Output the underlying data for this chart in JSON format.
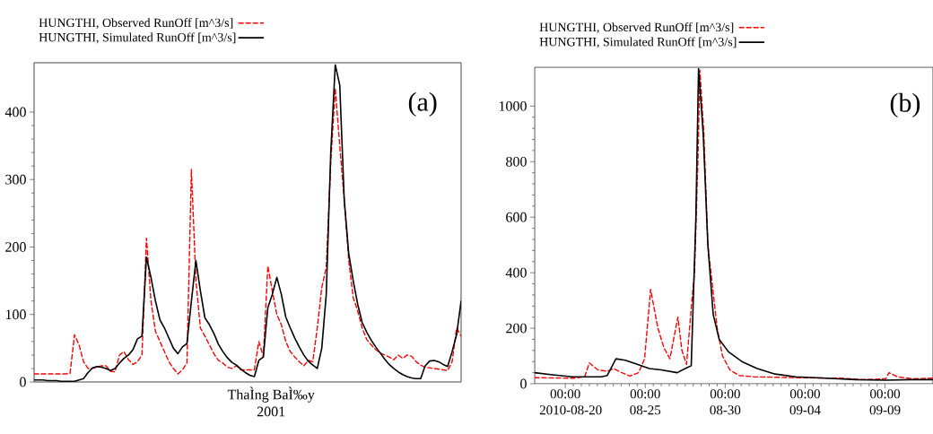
{
  "chart_data": [
    {
      "type": "line",
      "title": "(a)",
      "xlabel": "ThaÌng BaÌ‰y",
      "annotations": [
        "2001"
      ],
      "legend": "top left",
      "categories": [
        null,
        null,
        null,
        null,
        null,
        null,
        null,
        null,
        null,
        null,
        null,
        null,
        null,
        null,
        null,
        null,
        null,
        null,
        null,
        null,
        null,
        null,
        null,
        null,
        null,
        null,
        null,
        null,
        null,
        null,
        null,
        null,
        null,
        null,
        null,
        null,
        null,
        null,
        null,
        null,
        null,
        null,
        null,
        null,
        null,
        null,
        null,
        null,
        null,
        null,
        null,
        null,
        null,
        null,
        null,
        null,
        null,
        null,
        null,
        null,
        null,
        null,
        null,
        null,
        null,
        null,
        null,
        null,
        null,
        null,
        null,
        null,
        null,
        null,
        null,
        null,
        null,
        null,
        null,
        null,
        null,
        null,
        null,
        null,
        null,
        null,
        null,
        null,
        null,
        null,
        null,
        null,
        null,
        null,
        null,
        null
      ],
      "ylim": [
        0,
        473
      ],
      "yticks": [
        0,
        100,
        200,
        300,
        400
      ],
      "series": [
        {
          "name": "HUNGTHI, Observed RunOff [m^3/s]",
          "color": "#ff0000",
          "line_style": "dashed",
          "values": [
            12,
            12,
            12,
            12,
            12,
            12,
            12,
            12,
            13,
            70,
            55,
            30,
            20,
            20,
            22,
            24,
            24,
            16,
            15,
            40,
            45,
            33,
            26,
            30,
            40,
            213,
            120,
            75,
            60,
            45,
            30,
            20,
            12,
            18,
            28,
            315,
            150,
            80,
            68,
            55,
            42,
            32,
            28,
            22,
            20,
            24,
            18,
            18,
            18,
            18,
            60,
            38,
            172,
            135,
            100,
            85,
            60,
            45,
            37,
            30,
            24,
            32,
            30,
            80,
            140,
            170,
            325,
            435,
            350,
            270,
            180,
            125,
            105,
            80,
            63,
            55,
            48,
            43,
            40,
            37,
            33,
            40,
            35,
            40,
            38,
            30,
            25,
            22,
            21,
            20,
            19,
            18,
            17,
            30,
            80,
            68
          ]
        },
        {
          "name": "HUNGTHI, Simulated RunOff [m^3/s]",
          "color": "#000000",
          "line_style": "solid",
          "values": [
            3,
            3,
            3,
            2,
            2,
            2,
            1,
            1,
            1,
            1,
            3,
            5,
            14,
            21,
            23,
            22,
            20,
            17,
            20,
            28,
            35,
            40,
            48,
            64,
            68,
            185,
            155,
            120,
            92,
            80,
            65,
            50,
            42,
            52,
            57,
            120,
            180,
            135,
            95,
            85,
            72,
            56,
            45,
            36,
            29,
            25,
            19,
            14,
            10,
            8,
            32,
            37,
            110,
            130,
            155,
            130,
            96,
            80,
            65,
            52,
            40,
            31,
            25,
            20,
            50,
            130,
            340,
            470,
            440,
            270,
            190,
            150,
            115,
            88,
            74,
            62,
            52,
            43,
            34,
            26,
            20,
            15,
            11,
            8,
            6,
            5,
            5,
            24,
            31,
            32,
            30,
            26,
            23,
            45,
            70,
            120
          ]
        }
      ]
    },
    {
      "type": "line",
      "title": "(b)",
      "legend": "top left",
      "xlim": [
        "2010-08-18T02:00",
        "2010-09-12T00:00"
      ],
      "xticks": [
        {
          "value": "2010-08-20T00:00",
          "label": "00:00\n2010-08-20"
        },
        {
          "value": "2010-08-25T00:00",
          "label": "00:00\n08-25"
        },
        {
          "value": "2010-08-30T00:00",
          "label": "00:00\n08-30"
        },
        {
          "value": "2010-09-04T00:00",
          "label": "00:00\n09-04"
        },
        {
          "value": "2010-09-09T00:00",
          "label": "00:00\n09-09"
        }
      ],
      "ylim": [
        0,
        1140
      ],
      "yticks": [
        0,
        200,
        400,
        600,
        800,
        1000
      ],
      "series": [
        {
          "name": "HUNGTHI, Observed RunOff [m^3/s]",
          "color": "#ff0000",
          "line_style": "dashed",
          "x": [
            "2010-08-18T02:00",
            "2010-08-20T13:00",
            "2010-08-21T05:00",
            "2010-08-21T12:00",
            "2010-08-22T01:00",
            "2010-08-22T15:00",
            "2010-08-23T00:00",
            "2010-08-23T13:00",
            "2010-08-24T01:00",
            "2010-08-24T14:00",
            "2010-08-24T23:00",
            "2010-08-25T08:00",
            "2010-08-25T19:00",
            "2010-08-26T04:00",
            "2010-08-26T13:00",
            "2010-08-27T01:00",
            "2010-08-27T07:00",
            "2010-08-27T14:00",
            "2010-08-27T22:00",
            "2010-08-28T02:00",
            "2010-08-28T07:00",
            "2010-08-28T10:00",
            "2010-08-28T16:00",
            "2010-08-28T22:00",
            "2010-08-29T12:00",
            "2010-08-29T20:00",
            "2010-08-30T07:00",
            "2010-08-30T21:00",
            "2010-08-31T19:00",
            "2010-09-03T10:00",
            "2010-09-06T06:00",
            "2010-09-07T18:00",
            "2010-09-09T01:00",
            "2010-09-09T06:00",
            "2010-09-09T19:00",
            "2010-09-10T17:00",
            "2010-09-12T00:00"
          ],
          "values": [
            22,
            20,
            25,
            75,
            50,
            45,
            55,
            40,
            28,
            40,
            90,
            340,
            200,
            130,
            90,
            240,
            120,
            70,
            300,
            400,
            800,
            1130,
            900,
            500,
            200,
            100,
            50,
            30,
            25,
            22,
            20,
            15,
            18,
            40,
            25,
            18,
            20
          ]
        },
        {
          "name": "HUNGTHI, Simulated RunOff [m^3/s]",
          "color": "#000000",
          "line_style": "solid",
          "x": [
            "2010-08-18T02:00",
            "2010-08-19T02:00",
            "2010-08-20T11:00",
            "2010-08-21T07:00",
            "2010-08-22T06:00",
            "2010-08-22T15:00",
            "2010-08-23T04:00",
            "2010-08-23T18:00",
            "2010-08-24T12:00",
            "2010-08-25T06:00",
            "2010-08-26T00:00",
            "2010-08-27T00:00",
            "2010-08-27T12:00",
            "2010-08-27T21:00",
            "2010-08-28T04:00",
            "2010-08-28T08:00",
            "2010-08-28T15:00",
            "2010-08-28T22:00",
            "2010-08-29T06:00",
            "2010-08-29T15:00",
            "2010-08-30T05:00",
            "2010-08-31T01:00",
            "2010-09-01T00:00",
            "2010-09-02T03:00",
            "2010-09-03T10:00",
            "2010-09-05T07:00",
            "2010-09-07T04:00",
            "2010-09-09T01:00",
            "2010-09-10T13:00",
            "2010-09-12T00:00"
          ],
          "values": [
            40,
            33,
            25,
            25,
            25,
            30,
            90,
            85,
            70,
            55,
            50,
            40,
            55,
            65,
            600,
            1135,
            900,
            500,
            250,
            160,
            115,
            80,
            55,
            35,
            25,
            20,
            15,
            13,
            15,
            15
          ]
        }
      ]
    }
  ]
}
